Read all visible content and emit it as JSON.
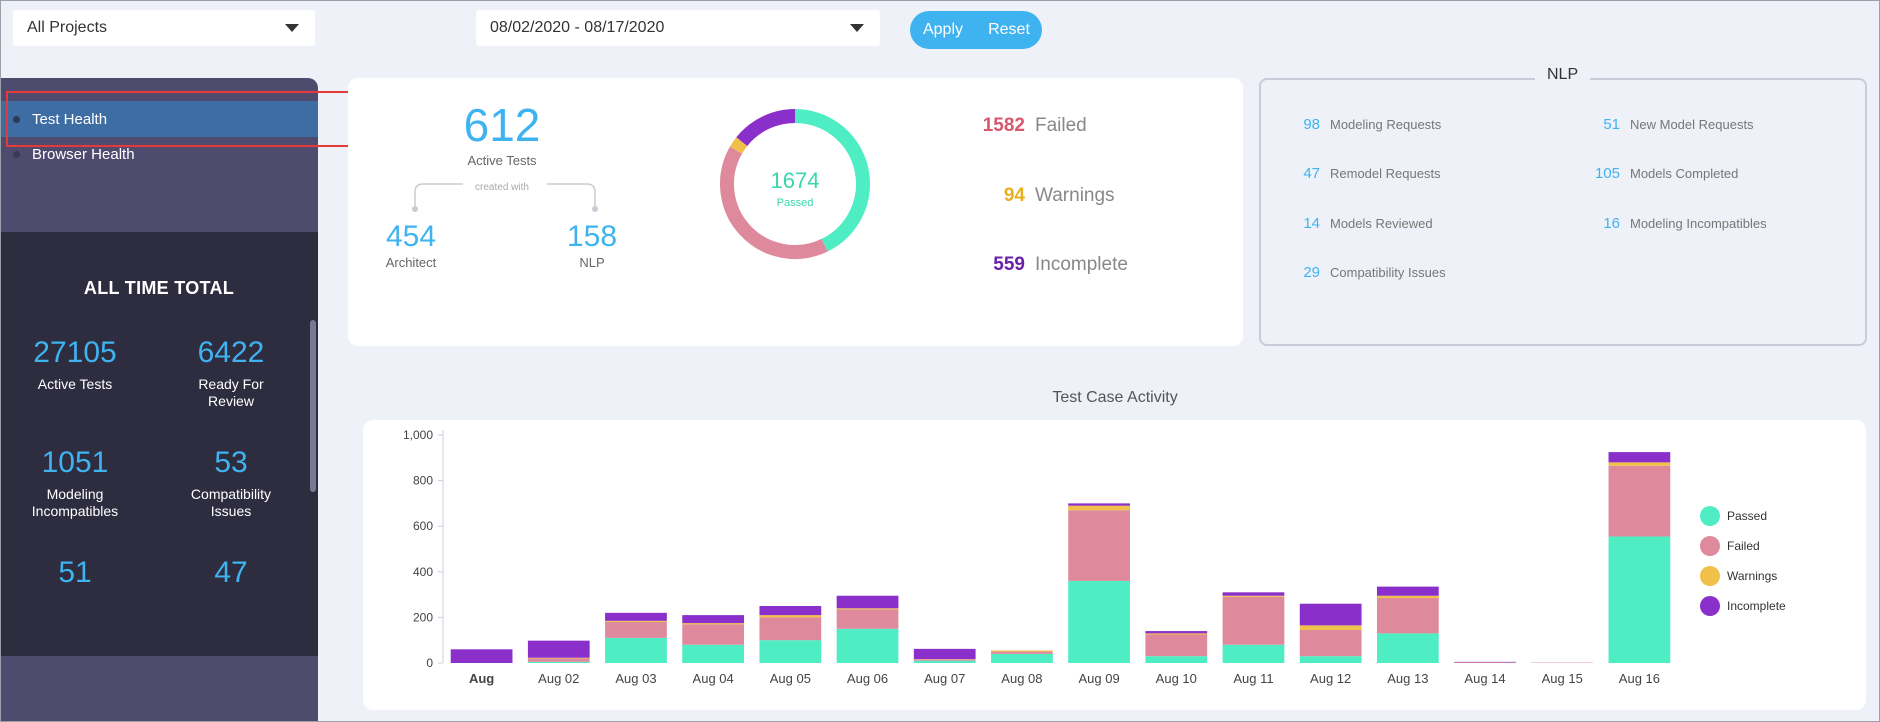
{
  "filters": {
    "project": "All Projects",
    "date_range": "08/02/2020 - 08/17/2020",
    "apply_label": "Apply",
    "reset_label": "Reset"
  },
  "sidebar": {
    "items": [
      {
        "label": "Test Health",
        "active": true
      },
      {
        "label": "Browser Health",
        "active": false
      }
    ],
    "totals_title": "ALL TIME TOTAL",
    "totals": [
      {
        "value": "27105",
        "label": "Active Tests"
      },
      {
        "value": "6422",
        "label": "Ready For Review"
      },
      {
        "value": "1051",
        "label": "Modeling Incompatibles"
      },
      {
        "value": "53",
        "label": "Compatibility Issues"
      },
      {
        "value": "51",
        "label": ""
      },
      {
        "value": "47",
        "label": ""
      }
    ]
  },
  "summary": {
    "active_tests": "612",
    "active_tests_label": "Active Tests",
    "created_with": "created with",
    "architect": "454",
    "architect_label": "Architect",
    "nlp": "158",
    "nlp_label": "NLP",
    "donut_center_value": "1674",
    "donut_center_label": "Passed",
    "failed": "1582",
    "failed_label": "Failed",
    "warnings": "94",
    "warnings_label": "Warnings",
    "incomplete": "559",
    "incomplete_label": "Incomplete"
  },
  "nlp_panel": {
    "title": "NLP",
    "rows": [
      {
        "value": "98",
        "label": "Modeling Requests"
      },
      {
        "value": "51",
        "label": "New Model Requests"
      },
      {
        "value": "47",
        "label": "Remodel Requests"
      },
      {
        "value": "105",
        "label": "Models Completed"
      },
      {
        "value": "14",
        "label": "Models Reviewed"
      },
      {
        "value": "16",
        "label": "Modeling Incompatibles"
      },
      {
        "value": "29",
        "label": "Compatibility Issues"
      }
    ]
  },
  "colors": {
    "passed": "#4eedc4",
    "failed": "#df8a9c",
    "warnings": "#f0c04a",
    "incomplete": "#8a2fc9",
    "accent": "#3fb3f0",
    "failed_text": "#d9566e",
    "warnings_text": "#e8b020",
    "incomplete_text": "#6a1fa8"
  },
  "chart_data": {
    "type": "bar",
    "title": "Test Case Activity",
    "stacked": true,
    "categories": [
      "Aug",
      "Aug 02",
      "Aug 03",
      "Aug 04",
      "Aug 05",
      "Aug 06",
      "Aug 07",
      "Aug 08",
      "Aug 09",
      "Aug 10",
      "Aug 11",
      "Aug 12",
      "Aug 13",
      "Aug 14",
      "Aug 15",
      "Aug 16"
    ],
    "series": [
      {
        "name": "Passed",
        "values": [
          0,
          5,
          110,
          80,
          100,
          150,
          10,
          40,
          360,
          30,
          80,
          30,
          130,
          0,
          0,
          555
        ]
      },
      {
        "name": "Failed",
        "values": [
          0,
          15,
          70,
          90,
          100,
          85,
          5,
          10,
          310,
          95,
          210,
          115,
          155,
          3,
          2,
          310
        ]
      },
      {
        "name": "Warnings",
        "values": [
          0,
          3,
          5,
          5,
          10,
          5,
          2,
          5,
          20,
          5,
          5,
          20,
          10,
          0,
          0,
          15
        ]
      },
      {
        "name": "Incomplete",
        "values": [
          60,
          75,
          35,
          35,
          40,
          55,
          45,
          0,
          10,
          10,
          15,
          95,
          40,
          2,
          0,
          45
        ]
      }
    ],
    "ylim": [
      0,
      1000
    ],
    "yticks": [
      0,
      200,
      400,
      600,
      800,
      1000
    ],
    "ytick_labels": [
      "0",
      "200",
      "400",
      "600",
      "800",
      "1,000"
    ],
    "legend": "right",
    "grid": false
  }
}
